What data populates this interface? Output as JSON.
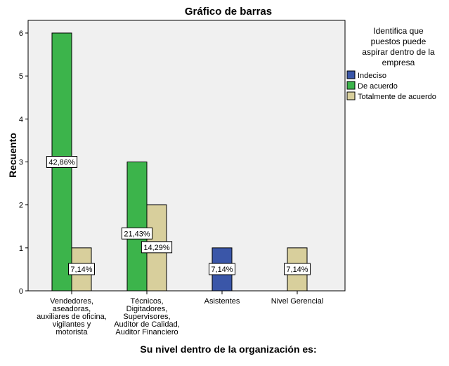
{
  "chart_data": {
    "type": "bar",
    "title": "Gráfico de barras",
    "xlabel": "Su nivel dentro de la organización es:",
    "ylabel": "Recuento",
    "ylim": [
      0,
      6
    ],
    "yticks": [
      "0",
      "1",
      "2",
      "3",
      "4",
      "5",
      "6"
    ],
    "grid": false,
    "legend_position": "right",
    "legend_title": [
      "Identifica que",
      "puestos puede",
      "aspirar dentro de la",
      "empresa"
    ],
    "categories": [
      [
        "Vendedores,",
        "aseadoras,",
        "auxiliares de oficina,",
        "vigilantes y",
        "motorista"
      ],
      [
        "Técnicos,",
        "Digitadores,",
        "Supervisores,",
        "Auditor de Calidad,",
        "Auditor Financiero"
      ],
      [
        "Asistentes"
      ],
      [
        "Nivel Gerencial"
      ]
    ],
    "series": [
      {
        "name": "Indeciso",
        "color": "#3a56a8",
        "values": [
          null,
          null,
          1,
          null
        ],
        "labels": [
          null,
          null,
          "7,14%",
          null
        ]
      },
      {
        "name": "De acuerdo",
        "color": "#3cb44b",
        "values": [
          6,
          3,
          null,
          null
        ],
        "labels": [
          "42,86%",
          "21,43%",
          null,
          null
        ]
      },
      {
        "name": "Totalmente  de acuerdo",
        "color": "#d8cf9c",
        "values": [
          1,
          2,
          null,
          1
        ],
        "labels": [
          "7,14%",
          "14,29%",
          null,
          "7,14%"
        ]
      }
    ]
  }
}
